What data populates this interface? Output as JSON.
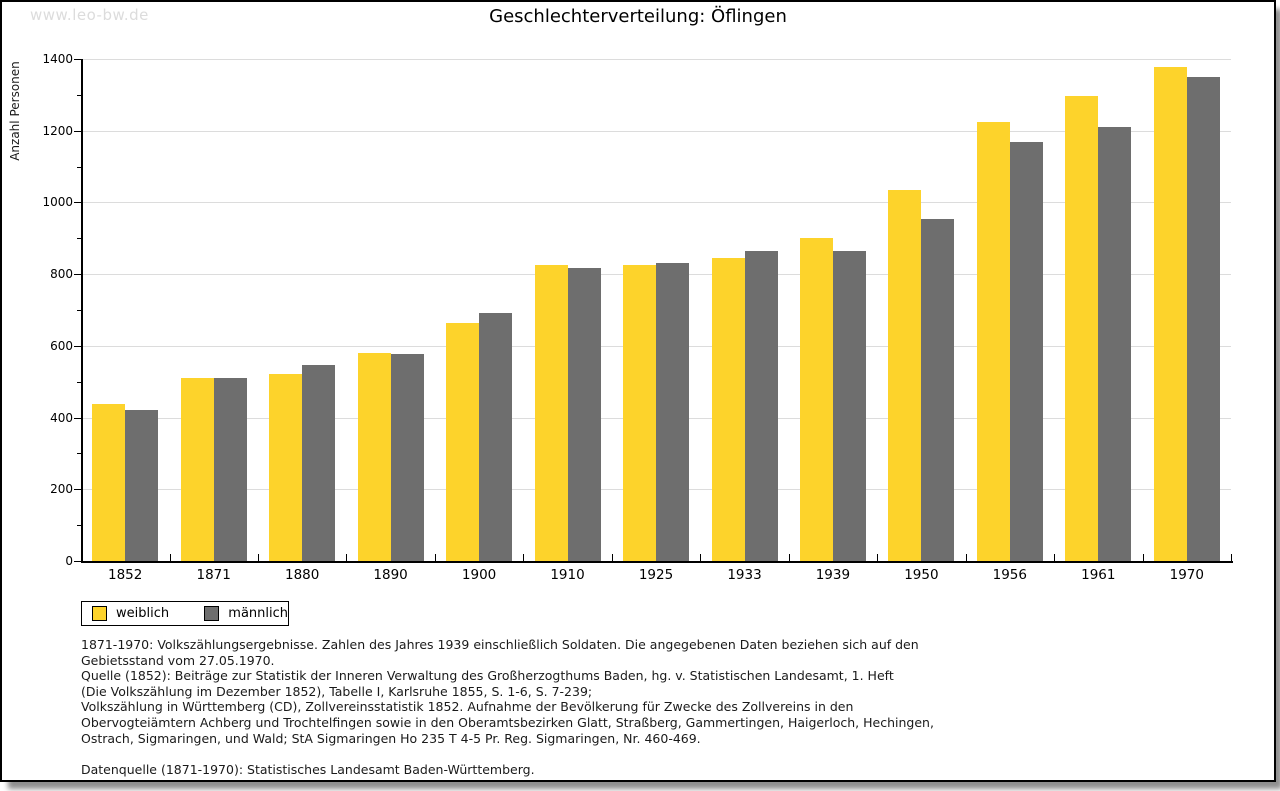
{
  "page": {
    "watermark": "www.leo-bw.de",
    "title": "Geschlechterverteilung: Öflingen"
  },
  "chart_data": {
    "type": "bar",
    "title": "Geschlechterverteilung: Öflingen",
    "xlabel": "",
    "ylabel": "Anzahl Personen",
    "categories": [
      "1852",
      "1871",
      "1880",
      "1890",
      "1900",
      "1910",
      "1925",
      "1933",
      "1939",
      "1950",
      "1956",
      "1961",
      "1970"
    ],
    "series": [
      {
        "name": "weiblich",
        "color": "#fdd32b",
        "values": [
          437,
          511,
          523,
          581,
          665,
          827,
          827,
          844,
          902,
          1035,
          1224,
          1296,
          1377
        ]
      },
      {
        "name": "männlich",
        "color": "#6e6e6e",
        "values": [
          422,
          511,
          548,
          578,
          693,
          816,
          830,
          866,
          866,
          955,
          1169,
          1211,
          1349
        ]
      }
    ],
    "ylim": [
      0,
      1400
    ],
    "ytick_step": 200,
    "y_minor_step": 100,
    "yticks": [
      "0",
      "200",
      "400",
      "600",
      "800",
      "1000",
      "1200",
      "1400"
    ],
    "grid": "horizontal-light",
    "gridline_color": "#dcdcdc",
    "legend_position": "bottom-left"
  },
  "legend": {
    "items": [
      {
        "label": "weiblich",
        "color": "#fdd32b"
      },
      {
        "label": "männlich",
        "color": "#6e6e6e"
      }
    ]
  },
  "footnotes": {
    "lines": [
      "1871-1970: Volkszählungsergebnisse. Zahlen des Jahres 1939 einschließlich Soldaten. Die angegebenen Daten beziehen sich auf den",
      "Gebietsstand vom 27.05.1970.",
      "Quelle (1852): Beiträge zur Statistik der Inneren Verwaltung des Großherzogthums Baden, hg. v. Statistischen Landesamt, 1. Heft",
      "(Die Volkszählung im Dezember 1852), Tabelle I, Karlsruhe 1855, S. 1-6, S. 7-239;",
      "Volkszählung in Württemberg (CD), Zollvereinsstatistik 1852. Aufnahme der Bevölkerung für Zwecke des Zollvereins in den",
      "Obervogteiämtern Achberg und Trochtelfingen sowie in den Oberamtsbezirken Glatt, Straßberg, Gammertingen, Haigerloch, Hechingen,",
      "Ostrach, Sigmaringen, und Wald; StA Sigmaringen Ho 235 T 4-5 Pr. Reg. Sigmaringen, Nr. 460-469.",
      "",
      "Datenquelle (1871-1970): Statistisches Landesamt Baden-Württemberg."
    ]
  }
}
